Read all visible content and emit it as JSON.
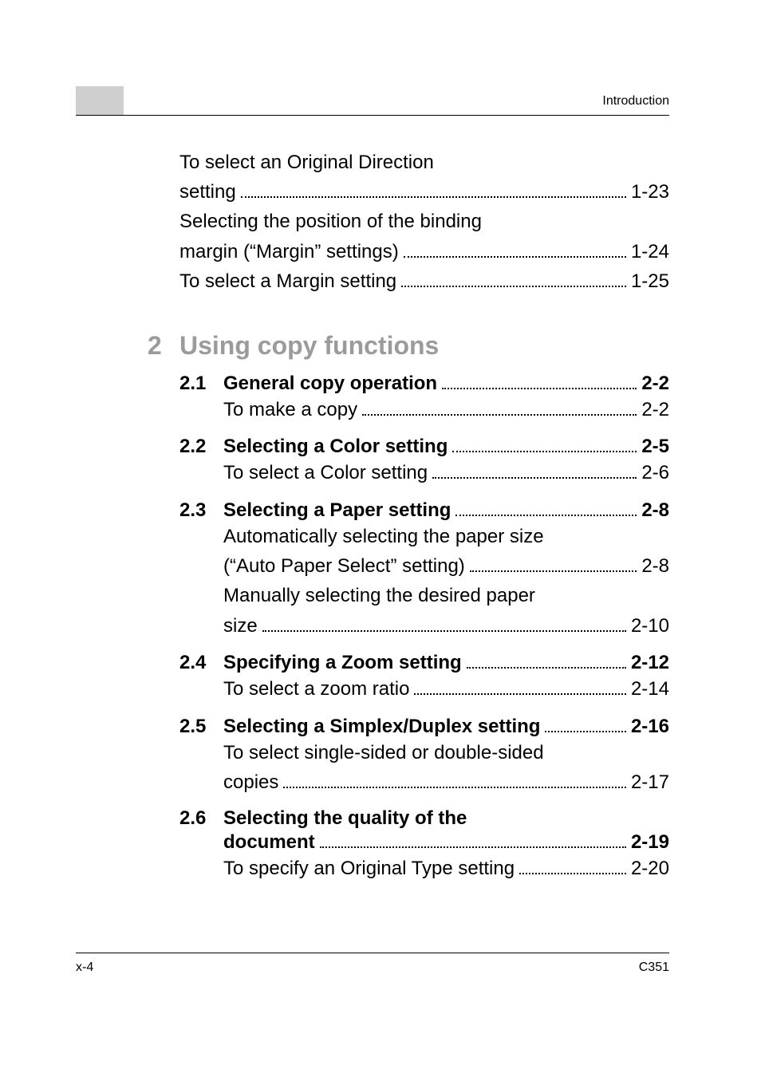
{
  "header": {
    "running_title": "Introduction"
  },
  "footer": {
    "left": "x-4",
    "right": "C351"
  },
  "colors": {
    "tab_gray": "#cfcfcf",
    "heading_gray": "#9b9b9b",
    "text": "#000000",
    "background": "#ffffff"
  },
  "typography": {
    "body_fontsize_pt": 18,
    "heading_fontsize_pt": 24,
    "header_footer_fontsize_pt": 12,
    "font_family": "sans-serif"
  },
  "pre_entries": [
    {
      "lines": [
        "To select an Original Direction",
        "setting"
      ],
      "page": "1-23"
    },
    {
      "lines": [
        "Selecting the position of the binding",
        "margin (“Margin” settings)"
      ],
      "page": "1-24"
    },
    {
      "lines": [
        "To select a Margin setting"
      ],
      "page": "1-25"
    }
  ],
  "chapter": {
    "num": "2",
    "title": "Using copy functions"
  },
  "sections": [
    {
      "num": "2.1",
      "title": "General copy operation",
      "page": "2-2",
      "subs": [
        {
          "lines": [
            "To make a copy"
          ],
          "page": "2-2"
        }
      ]
    },
    {
      "num": "2.2",
      "title": "Selecting a Color setting",
      "page": "2-5",
      "subs": [
        {
          "lines": [
            "To select a Color setting"
          ],
          "page": "2-6"
        }
      ]
    },
    {
      "num": "2.3",
      "title": "Selecting a Paper setting",
      "page": "2-8",
      "subs": [
        {
          "lines": [
            "Automatically selecting the paper size",
            "(“Auto Paper Select” setting)"
          ],
          "page": "2-8"
        },
        {
          "lines": [
            "Manually selecting the desired paper",
            "size"
          ],
          "page": "2-10"
        }
      ]
    },
    {
      "num": "2.4",
      "title": "Specifying a Zoom setting",
      "page": "2-12",
      "subs": [
        {
          "lines": [
            "To select a zoom ratio"
          ],
          "page": "2-14"
        }
      ]
    },
    {
      "num": "2.5",
      "title": "Selecting a Simplex/Duplex setting",
      "page": "2-16",
      "subs": [
        {
          "lines": [
            "To select single-sided or double-sided",
            "copies"
          ],
          "page": "2-17"
        }
      ]
    },
    {
      "num": "2.6",
      "title_lines": [
        "Selecting the quality of the",
        "document"
      ],
      "page": "2-19",
      "subs": [
        {
          "lines": [
            "To specify an Original Type setting"
          ],
          "page": "2-20"
        }
      ]
    }
  ]
}
